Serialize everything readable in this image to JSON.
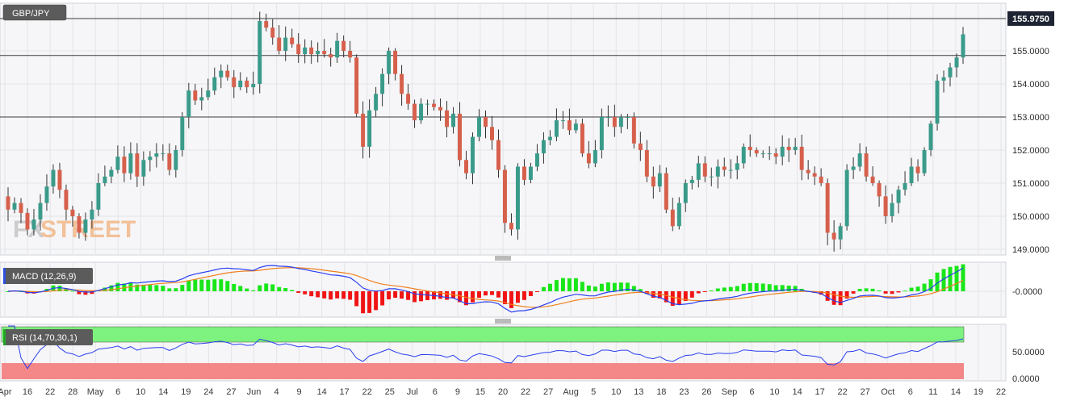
{
  "symbol": "GBP/JPY",
  "last_price_label": "155.9750",
  "watermark": {
    "part1": "FX",
    "part2": "STREET"
  },
  "chart_data": [
    {
      "type": "candlestick",
      "title": "GBP/JPY",
      "ylim": [
        148.8,
        156.15
      ],
      "y_ticks": [
        "155.0000",
        "154.0000",
        "153.0000",
        "152.0000",
        "151.0000",
        "150.0000",
        "149.0000"
      ],
      "last_price": 155.975,
      "horizontal_lines": [
        155.975,
        154.86,
        153.0
      ],
      "grid": true,
      "x_ticks": [
        "Apr",
        "16",
        "22",
        "28",
        "May",
        "6",
        "10",
        "14",
        "19",
        "24",
        "27",
        "Jun",
        "4",
        "9",
        "14",
        "17",
        "22",
        "25",
        "Jul",
        "6",
        "9",
        "15",
        "20",
        "22",
        "27",
        "Aug",
        "5",
        "10",
        "13",
        "18",
        "23",
        "26",
        "Sep",
        "6",
        "10",
        "14",
        "17",
        "22",
        "27",
        "Oct",
        "6",
        "11",
        "14",
        "19",
        "22"
      ],
      "closes": [
        150.2,
        150.4,
        150.1,
        149.6,
        149.9,
        150.4,
        150.9,
        151.4,
        150.8,
        150.2,
        150.0,
        149.5,
        149.9,
        150.2,
        151.0,
        151.2,
        151.4,
        151.8,
        151.3,
        151.9,
        151.2,
        151.7,
        151.8,
        151.9,
        151.9,
        151.4,
        152.0,
        153.0,
        153.8,
        153.5,
        153.6,
        153.8,
        154.2,
        154.4,
        154.2,
        153.9,
        154.1,
        153.9,
        154.0,
        155.9,
        155.7,
        155.4,
        155.0,
        155.4,
        155.2,
        154.9,
        155.1,
        154.9,
        155.0,
        154.9,
        154.8,
        155.3,
        155.0,
        154.8,
        153.1,
        152.1,
        153.2,
        153.7,
        154.3,
        155.0,
        154.3,
        153.7,
        153.4,
        152.9,
        153.4,
        153.4,
        153.3,
        153.2,
        152.7,
        153.1,
        151.7,
        151.3,
        152.4,
        153.0,
        152.7,
        152.3,
        151.4,
        149.8,
        149.6,
        151.5,
        151.1,
        151.5,
        151.9,
        152.3,
        152.4,
        152.9,
        152.9,
        152.6,
        152.8,
        151.9,
        151.6,
        152.0,
        153.0,
        153.0,
        152.7,
        153.0,
        153.0,
        152.2,
        152.0,
        151.2,
        150.9,
        151.3,
        150.2,
        149.7,
        150.4,
        151.0,
        151.1,
        151.6,
        151.2,
        151.2,
        151.5,
        151.4,
        151.4,
        151.6,
        152.1,
        152.0,
        151.9,
        151.9,
        151.9,
        151.8,
        152.1,
        152.0,
        152.1,
        151.4,
        151.3,
        151.2,
        151.0,
        149.5,
        149.3,
        149.7,
        151.4,
        151.5,
        151.9,
        151.2,
        151.0,
        150.6,
        150.0,
        150.4,
        150.8,
        151.0,
        151.5,
        151.3,
        152.0,
        152.8,
        154.1,
        154.2,
        154.5,
        154.8,
        155.5
      ]
    },
    {
      "type": "line",
      "title": "MACD (12,26,9)",
      "y_ticks": [
        "-0.0000"
      ],
      "series": []
    },
    {
      "type": "line",
      "title": "RSI (14,70,30,1)",
      "y_ticks": [
        "50.0000",
        "0.0000"
      ],
      "overbought": 70,
      "oversold": 30,
      "series": []
    }
  ]
}
